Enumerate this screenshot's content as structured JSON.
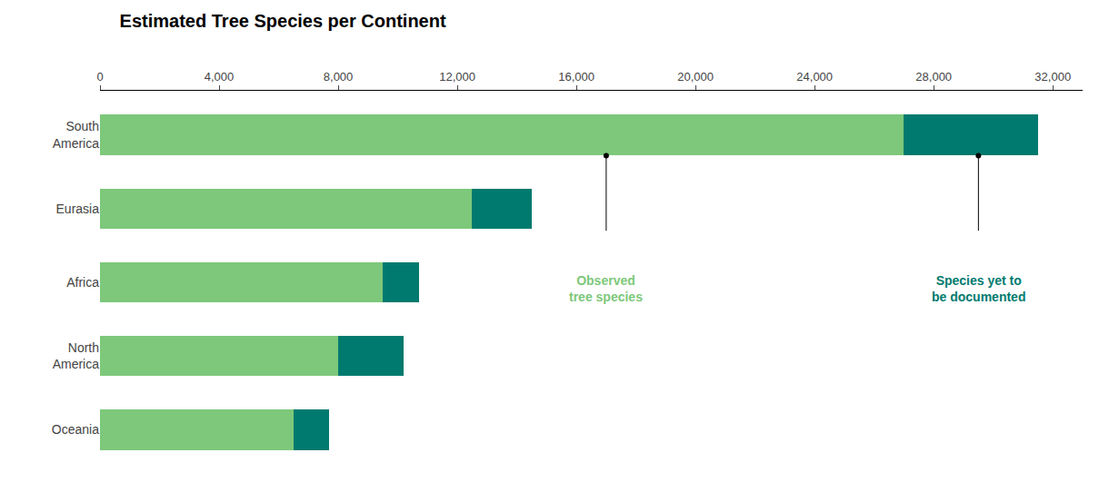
{
  "chart_data": {
    "type": "bar",
    "orientation": "horizontal",
    "stacked": true,
    "title": "Estimated Tree Species per Continent",
    "categories": [
      "South\nAmerica",
      "Eurasia",
      "Africa",
      "North\nAmerica",
      "Oceania"
    ],
    "series": [
      {
        "color": "#7dc87a",
        "values": [
          27000,
          12500,
          9500,
          8000,
          6500
        ]
      },
      {
        "color": "#007a6e",
        "values": [
          4500,
          2000,
          1200,
          2200,
          1200
        ]
      }
    ],
    "xlim": [
      0,
      33000
    ],
    "xticks": [
      0,
      {
        "value": 4000,
        "label": "4,000"
      },
      {
        "value": 8000,
        "label": "8,000"
      },
      {
        "value": 12000,
        "label": "12,000"
      },
      {
        "value": 16000,
        "label": "16,000"
      },
      {
        "value": 20000,
        "label": "20,000"
      },
      {
        "value": 24000,
        "label": "24,000"
      },
      {
        "value": 28000,
        "label": "28,000"
      },
      {
        "value": 32000,
        "label": "32,000"
      }
    ],
    "grid": false,
    "annotations": [
      {
        "text": "Observed\ntree species",
        "x": 17000,
        "color": "#7dc87a"
      },
      {
        "text": "Species yet to\nbe documented",
        "x": 29500,
        "color": "#007a6e"
      }
    ]
  }
}
